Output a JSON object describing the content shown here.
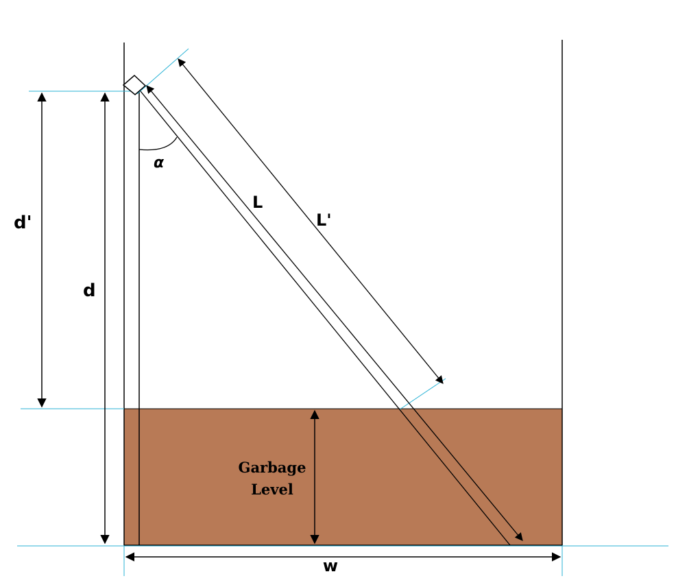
{
  "labels": {
    "d_prime": "d'",
    "d": "d",
    "alpha": "α",
    "L": "L",
    "L_prime": "L'",
    "garbage_line1": "Garbage",
    "garbage_line2": "Level",
    "w": "w"
  },
  "colors": {
    "garbage_fill": "#b87a56",
    "guide_line": "#2bb3d6",
    "ink": "#000000"
  }
}
